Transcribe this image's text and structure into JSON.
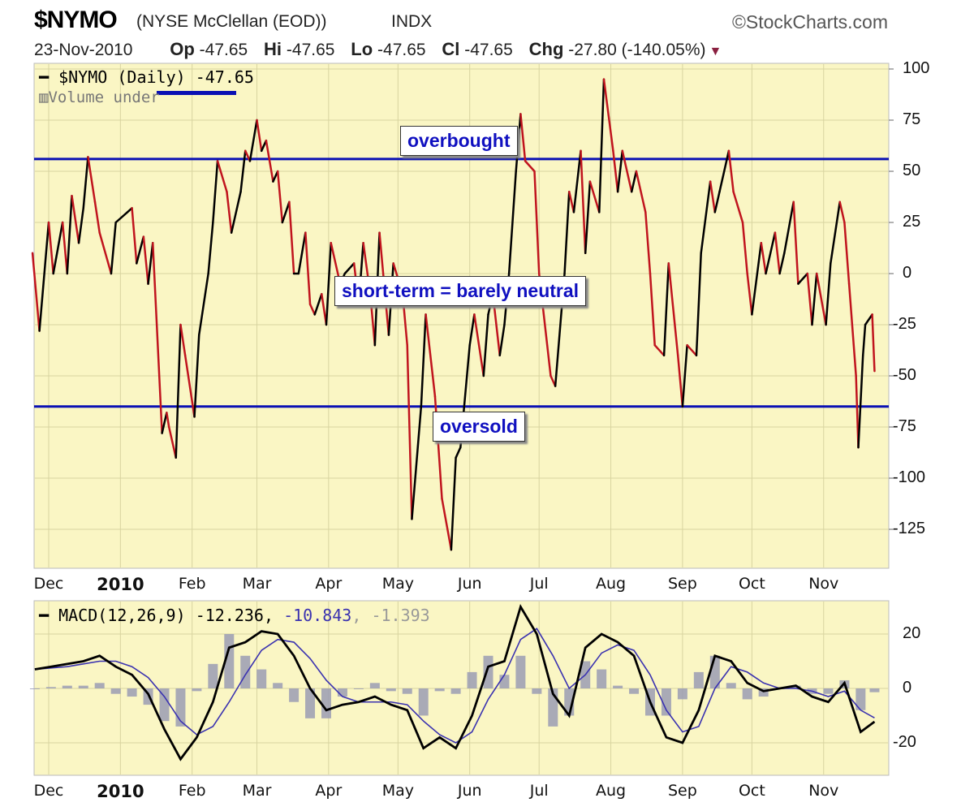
{
  "header": {
    "symbol": "$NYMO",
    "name": "(NYSE McClellan (EOD))",
    "exchange": "INDX",
    "copyright": "©StockCharts.com",
    "date": "23-Nov-2010",
    "op_label": "Op",
    "op": "-47.65",
    "hi_label": "Hi",
    "hi": "-47.65",
    "lo_label": "Lo",
    "lo": "-47.65",
    "cl_label": "Cl",
    "cl": "-47.65",
    "chg_label": "Chg",
    "chg": "-27.80 (-140.05%)",
    "chg_direction": "down"
  },
  "colors": {
    "background": "#faf6c4",
    "up": "#000000",
    "down": "#c0141e",
    "levels": "#0a10b4",
    "signal": "#3a32b0",
    "histogram": "#9a9cb4",
    "annotation_text": "#1010c0"
  },
  "chart_data": [
    {
      "type": "line",
      "legend": {
        "symbol": "$NYMO",
        "period": "(Daily)",
        "value": "-47.65",
        "volume_text": "Volume under"
      },
      "yticks": [
        100,
        75,
        50,
        25,
        0,
        -25,
        -50,
        -75,
        -100,
        -125
      ],
      "ylim": [
        -140,
        103
      ],
      "xtick_labels": [
        "Dec",
        "2010",
        "Feb",
        "Mar",
        "Apr",
        "May",
        "Jun",
        "Jul",
        "Aug",
        "Sep",
        "Oct",
        "Nov"
      ],
      "grid": true,
      "axis_side": "right",
      "levels": [
        {
          "label": "overbought",
          "value": 56
        },
        {
          "label": "oversold",
          "value": -65
        }
      ],
      "annotations": [
        "overbought",
        "short-term = barely neutral",
        "oversold"
      ],
      "x": [
        "2009-11-24",
        "2009-11-27",
        "2009-12-01",
        "2009-12-03",
        "2009-12-07",
        "2009-12-09",
        "2009-12-11",
        "2009-12-14",
        "2009-12-16",
        "2009-12-18",
        "2009-12-21",
        "2009-12-23",
        "2009-12-28",
        "2009-12-30",
        "2010-01-04",
        "2010-01-06",
        "2010-01-08",
        "2010-01-11",
        "2010-01-13",
        "2010-01-15",
        "2010-01-19",
        "2010-01-21",
        "2010-01-22",
        "2010-01-25",
        "2010-01-27",
        "2010-01-29",
        "2010-02-02",
        "2010-02-04",
        "2010-02-08",
        "2010-02-10",
        "2010-02-12",
        "2010-02-16",
        "2010-02-18",
        "2010-02-22",
        "2010-02-24",
        "2010-02-26",
        "2010-03-01",
        "2010-03-03",
        "2010-03-05",
        "2010-03-08",
        "2010-03-10",
        "2010-03-12",
        "2010-03-15",
        "2010-03-17",
        "2010-03-19",
        "2010-03-22",
        "2010-03-24",
        "2010-03-26",
        "2010-03-29",
        "2010-03-31",
        "2010-04-02",
        "2010-04-06",
        "2010-04-08",
        "2010-04-12",
        "2010-04-14",
        "2010-04-16",
        "2010-04-19",
        "2010-04-21",
        "2010-04-23",
        "2010-04-27",
        "2010-04-29",
        "2010-05-03",
        "2010-05-05",
        "2010-05-07",
        "2010-05-11",
        "2010-05-13",
        "2010-05-17",
        "2010-05-20",
        "2010-05-24",
        "2010-05-26",
        "2010-05-28",
        "2010-06-01",
        "2010-06-03",
        "2010-06-07",
        "2010-06-09",
        "2010-06-11",
        "2010-06-14",
        "2010-06-16",
        "2010-06-18",
        "2010-06-21",
        "2010-06-23",
        "2010-06-25",
        "2010-06-29",
        "2010-07-01",
        "2010-07-06",
        "2010-07-08",
        "2010-07-12",
        "2010-07-14",
        "2010-07-16",
        "2010-07-19",
        "2010-07-21",
        "2010-07-23",
        "2010-07-27",
        "2010-07-29",
        "2010-08-02",
        "2010-08-04",
        "2010-08-06",
        "2010-08-10",
        "2010-08-12",
        "2010-08-16",
        "2010-08-18",
        "2010-08-20",
        "2010-08-24",
        "2010-08-26",
        "2010-08-30",
        "2010-09-01",
        "2010-09-03",
        "2010-09-07",
        "2010-09-09",
        "2010-09-13",
        "2010-09-15",
        "2010-09-17",
        "2010-09-21",
        "2010-09-23",
        "2010-09-27",
        "2010-09-29",
        "2010-10-01",
        "2010-10-05",
        "2010-10-07",
        "2010-10-11",
        "2010-10-13",
        "2010-10-15",
        "2010-10-19",
        "2010-10-21",
        "2010-10-25",
        "2010-10-27",
        "2010-10-29",
        "2010-11-02",
        "2010-11-04",
        "2010-11-08",
        "2010-11-10",
        "2010-11-12",
        "2010-11-15",
        "2010-11-16",
        "2010-11-18",
        "2010-11-19",
        "2010-11-22",
        "2010-11-23"
      ],
      "values": [
        10,
        -28,
        25,
        0,
        25,
        0,
        38,
        15,
        32,
        57,
        35,
        20,
        0,
        25,
        30,
        32,
        5,
        18,
        -5,
        15,
        -78,
        -68,
        -75,
        -90,
        -25,
        -40,
        -70,
        -30,
        0,
        25,
        55,
        40,
        20,
        40,
        60,
        55,
        75,
        60,
        65,
        45,
        50,
        25,
        35,
        0,
        0,
        20,
        -15,
        -20,
        -10,
        -25,
        15,
        -5,
        0,
        5,
        -15,
        15,
        -10,
        -35,
        20,
        -30,
        5,
        -10,
        -35,
        -120,
        -65,
        -20,
        -60,
        -110,
        -135,
        -90,
        -85,
        -35,
        -20,
        -50,
        -20,
        -10,
        -40,
        -25,
        0,
        50,
        78,
        55,
        50,
        0,
        -50,
        -55,
        0,
        40,
        30,
        60,
        10,
        45,
        30,
        95,
        60,
        40,
        60,
        40,
        50,
        30,
        0,
        -35,
        -40,
        5,
        -40,
        -65,
        -35,
        -40,
        10,
        45,
        30,
        40,
        60,
        40,
        25,
        0,
        -20,
        15,
        0,
        20,
        0,
        10,
        35,
        -5,
        0,
        -25,
        0,
        -25,
        5,
        35,
        25,
        -5,
        -50,
        -85,
        -40,
        -25,
        -20,
        -47.65
      ]
    },
    {
      "type": "line",
      "legend": {
        "label": "MACD(12,26,9)",
        "macd": "-12.236,",
        "signal": "-10.843",
        "histogram": ", -1.393"
      },
      "yticks": [
        20,
        0,
        -20
      ],
      "ylim": [
        -30,
        30
      ],
      "xtick_labels": [
        "Dec",
        "2010",
        "Feb",
        "Mar",
        "Apr",
        "May",
        "Jun",
        "Jul",
        "Aug",
        "Sep",
        "Oct",
        "Nov"
      ],
      "grid": true,
      "x": [
        "2009-11-25",
        "2009-12-02",
        "2009-12-09",
        "2009-12-16",
        "2009-12-23",
        "2009-12-30",
        "2010-01-06",
        "2010-01-13",
        "2010-01-20",
        "2010-01-27",
        "2010-02-03",
        "2010-02-10",
        "2010-02-17",
        "2010-02-24",
        "2010-03-03",
        "2010-03-10",
        "2010-03-17",
        "2010-03-24",
        "2010-03-31",
        "2010-04-07",
        "2010-04-14",
        "2010-04-21",
        "2010-04-28",
        "2010-05-05",
        "2010-05-12",
        "2010-05-19",
        "2010-05-26",
        "2010-06-02",
        "2010-06-09",
        "2010-06-16",
        "2010-06-23",
        "2010-06-30",
        "2010-07-07",
        "2010-07-14",
        "2010-07-21",
        "2010-07-28",
        "2010-08-04",
        "2010-08-11",
        "2010-08-18",
        "2010-08-25",
        "2010-09-01",
        "2010-09-08",
        "2010-09-15",
        "2010-09-22",
        "2010-09-29",
        "2010-10-06",
        "2010-10-13",
        "2010-10-20",
        "2010-10-27",
        "2010-11-03",
        "2010-11-10",
        "2010-11-17",
        "2010-11-23"
      ],
      "series": [
        {
          "name": "MACD",
          "values": [
            7,
            8,
            9,
            10,
            12,
            8,
            5,
            -2,
            -15,
            -26,
            -18,
            -5,
            15,
            17,
            21,
            20,
            12,
            0,
            -8,
            -6,
            -5,
            -3,
            -6,
            -8,
            -22,
            -18,
            -22,
            -10,
            8,
            10,
            30,
            20,
            -2,
            -10,
            15,
            20,
            17,
            12,
            -5,
            -18,
            -20,
            -8,
            12,
            10,
            2,
            -1,
            0,
            1,
            -3,
            -5,
            2,
            -16,
            -12.236
          ]
        },
        {
          "name": "Signal",
          "values": [
            7,
            7.5,
            8,
            9,
            10,
            10,
            8,
            4,
            -3,
            -12,
            -17,
            -14,
            -5,
            5,
            14,
            18,
            17,
            11,
            3,
            -3,
            -5,
            -5,
            -5,
            -6,
            -12,
            -17,
            -20,
            -16,
            -4,
            5,
            18,
            22,
            12,
            0,
            5,
            13,
            16,
            14,
            5,
            -8,
            -16,
            -14,
            0,
            8,
            6,
            2,
            0,
            0,
            -1,
            -3,
            -1,
            -8,
            -10.843
          ]
        },
        {
          "name": "Histogram",
          "values": [
            0,
            0.5,
            1,
            1,
            2,
            -2,
            -3,
            -6,
            -12,
            -14,
            -1,
            9,
            20,
            12,
            7,
            2,
            -5,
            -11,
            -11,
            -3,
            0,
            2,
            -1,
            -2,
            -10,
            -1,
            -2,
            6,
            12,
            5,
            12,
            -2,
            -14,
            -10,
            10,
            7,
            1,
            -2,
            -10,
            -10,
            -4,
            6,
            12,
            2,
            -4,
            -3,
            0,
            1,
            -2,
            -2,
            3,
            -8,
            -1.393
          ]
        }
      ]
    }
  ]
}
